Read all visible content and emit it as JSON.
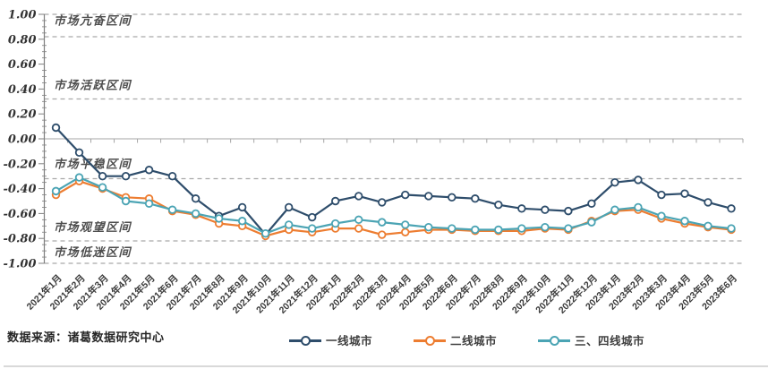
{
  "chart_data": {
    "type": "line",
    "title": "",
    "xlabel": "",
    "ylabel": "",
    "ylim": [
      -1.0,
      1.0
    ],
    "y_ticks": [
      "1.00",
      "0.80",
      "0.60",
      "0.40",
      "0.20",
      "0.00",
      "-0.20",
      "-0.40",
      "-0.60",
      "-0.80",
      "-1.00"
    ],
    "grid": false,
    "legend_position": "bottom",
    "x": [
      "2021年1月",
      "2021年2月",
      "2021年3月",
      "2021年4月",
      "2021年5月",
      "2021年6月",
      "2021年7月",
      "2021年8月",
      "2021年9月",
      "2021年10月",
      "2021年11月",
      "2021年12月",
      "2022年1月",
      "2022年2月",
      "2022年3月",
      "2022年4月",
      "2022年5月",
      "2022年6月",
      "2022年7月",
      "2022年8月",
      "2022年9月",
      "2022年10月",
      "2022年11月",
      "2022年12月",
      "2023年1月",
      "2023年2月",
      "2023年3月",
      "2023年4月",
      "2023年5月",
      "2023年6月"
    ],
    "series": [
      {
        "name": "一线城市",
        "color": "#2e4d6b",
        "marker": "open-circle",
        "values": [
          0.09,
          -0.11,
          -0.3,
          -0.3,
          -0.25,
          -0.3,
          -0.48,
          -0.62,
          -0.55,
          -0.77,
          -0.55,
          -0.63,
          -0.5,
          -0.46,
          -0.51,
          -0.45,
          -0.46,
          -0.47,
          -0.48,
          -0.53,
          -0.56,
          -0.57,
          -0.58,
          -0.52,
          -0.35,
          -0.33,
          -0.45,
          -0.44,
          -0.51,
          -0.56
        ]
      },
      {
        "name": "二线城市",
        "color": "#ed7d31",
        "marker": "open-circle",
        "values": [
          -0.45,
          -0.34,
          -0.4,
          -0.47,
          -0.48,
          -0.58,
          -0.61,
          -0.68,
          -0.7,
          -0.78,
          -0.73,
          -0.75,
          -0.72,
          -0.72,
          -0.77,
          -0.75,
          -0.73,
          -0.73,
          -0.74,
          -0.74,
          -0.74,
          -0.72,
          -0.73,
          -0.66,
          -0.58,
          -0.57,
          -0.64,
          -0.68,
          -0.71,
          -0.73
        ]
      },
      {
        "name": "三、四线城市",
        "color": "#4ba4b4",
        "marker": "open-circle",
        "values": [
          -0.42,
          -0.31,
          -0.39,
          -0.5,
          -0.52,
          -0.57,
          -0.6,
          -0.64,
          -0.66,
          -0.76,
          -0.69,
          -0.72,
          -0.68,
          -0.65,
          -0.67,
          -0.69,
          -0.71,
          -0.72,
          -0.73,
          -0.73,
          -0.72,
          -0.71,
          -0.72,
          -0.67,
          -0.57,
          -0.55,
          -0.62,
          -0.66,
          -0.7,
          -0.72
        ]
      }
    ],
    "zone_lines": [
      1.0,
      0.82,
      0.32,
      -0.32,
      -0.82,
      -1.0
    ],
    "zone_labels": [
      {
        "text": "市场亢奋区间",
        "y": 0.95
      },
      {
        "text": "市场活跃区间",
        "y": 0.43
      },
      {
        "text": "市场平稳区间",
        "y": -0.2
      },
      {
        "text": "市场观望区间",
        "y": -0.71
      },
      {
        "text": "市场低迷区间",
        "y": -0.91
      }
    ],
    "colors": {
      "zone_line": "#a9a9a9",
      "zero_axis": "#a6a6a6",
      "axis": "#7f7f7f",
      "tick_label": "#333333",
      "x_label": "#3a3a3a",
      "zone_label": "#4d4d4d"
    }
  },
  "footer": {
    "source": "数据来源：诸葛数据研究中心"
  }
}
